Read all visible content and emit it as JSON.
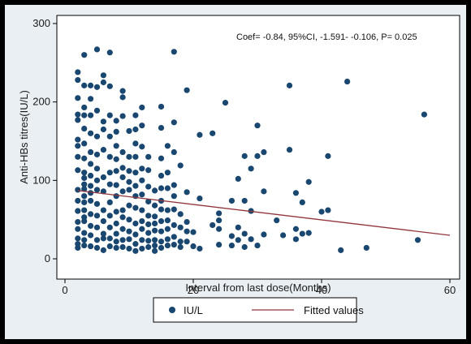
{
  "chart_data": {
    "type": "scatter",
    "xlabel": "Interval from last dose(Months)",
    "ylabel": "Anti-HBs titres(IU/L)",
    "annotation": "Coef= -0.84, 95%CI, -1.591- -0.106, P= 0.025",
    "xlim": [
      0,
      60
    ],
    "ylim": [
      0,
      300
    ],
    "xticks": [
      0,
      20,
      40,
      60
    ],
    "yticks": [
      0,
      100,
      200,
      300
    ],
    "legend_position": "bottom",
    "grid": false,
    "colors": {
      "points": "#1a476f",
      "fitted": "#90353b",
      "plot_bg": "#ffffff",
      "frame_bg": "#e9eff3"
    },
    "series": [
      {
        "name": "IU/L",
        "kind": "scatter",
        "points": [
          [
            2,
            238
          ],
          [
            2,
            228
          ],
          [
            2,
            205
          ],
          [
            2,
            184
          ],
          [
            2,
            177
          ],
          [
            2,
            152
          ],
          [
            2,
            144
          ],
          [
            2,
            130
          ],
          [
            2,
            113
          ],
          [
            2,
            88
          ],
          [
            2,
            74
          ],
          [
            2,
            61
          ],
          [
            2,
            47
          ],
          [
            2,
            38
          ],
          [
            2,
            26
          ],
          [
            2,
            19
          ],
          [
            2,
            14
          ],
          [
            3,
            260
          ],
          [
            3,
            221
          ],
          [
            3,
            193
          ],
          [
            3,
            183
          ],
          [
            3,
            166
          ],
          [
            3,
            147
          ],
          [
            3,
            128
          ],
          [
            3,
            110
          ],
          [
            3,
            103
          ],
          [
            3,
            95
          ],
          [
            3,
            89
          ],
          [
            3,
            80
          ],
          [
            3,
            72
          ],
          [
            3,
            62
          ],
          [
            3,
            53
          ],
          [
            3,
            48
          ],
          [
            3,
            33
          ],
          [
            3,
            24
          ],
          [
            3,
            17
          ],
          [
            4,
            221
          ],
          [
            4,
            204
          ],
          [
            4,
            183
          ],
          [
            4,
            160
          ],
          [
            4,
            136
          ],
          [
            4,
            121
          ],
          [
            4,
            106
          ],
          [
            4,
            93
          ],
          [
            4,
            84
          ],
          [
            4,
            74
          ],
          [
            4,
            57
          ],
          [
            4,
            42
          ],
          [
            4,
            30
          ],
          [
            4,
            16
          ],
          [
            5,
            267
          ],
          [
            5,
            219
          ],
          [
            5,
            189
          ],
          [
            5,
            156
          ],
          [
            5,
            133
          ],
          [
            5,
            115
          ],
          [
            5,
            100
          ],
          [
            5,
            88
          ],
          [
            5,
            70
          ],
          [
            5,
            55
          ],
          [
            5,
            40
          ],
          [
            5,
            24
          ],
          [
            5,
            14
          ],
          [
            6,
            234
          ],
          [
            6,
            225
          ],
          [
            6,
            175
          ],
          [
            6,
            165
          ],
          [
            6,
            139
          ],
          [
            6,
            104
          ],
          [
            6,
            86
          ],
          [
            6,
            62
          ],
          [
            6,
            48
          ],
          [
            6,
            32
          ],
          [
            6,
            26
          ],
          [
            6,
            11
          ],
          [
            7,
            263
          ],
          [
            7,
            220
          ],
          [
            7,
            183
          ],
          [
            7,
            156
          ],
          [
            7,
            130
          ],
          [
            7,
            110
          ],
          [
            7,
            95
          ],
          [
            7,
            72
          ],
          [
            7,
            55
          ],
          [
            7,
            40
          ],
          [
            7,
            26
          ],
          [
            7,
            16
          ],
          [
            8,
            176
          ],
          [
            8,
            162
          ],
          [
            8,
            144
          ],
          [
            8,
            127
          ],
          [
            8,
            112
          ],
          [
            8,
            94
          ],
          [
            8,
            80
          ],
          [
            8,
            60
          ],
          [
            8,
            45
          ],
          [
            8,
            32
          ],
          [
            8,
            22
          ],
          [
            8,
            14
          ],
          [
            9,
            214
          ],
          [
            9,
            206
          ],
          [
            9,
            182
          ],
          [
            9,
            136
          ],
          [
            9,
            116
          ],
          [
            9,
            104
          ],
          [
            9,
            86
          ],
          [
            9,
            62
          ],
          [
            9,
            53
          ],
          [
            9,
            38
          ],
          [
            9,
            24
          ],
          [
            9,
            15
          ],
          [
            10,
            163
          ],
          [
            10,
            130
          ],
          [
            10,
            112
          ],
          [
            10,
            98
          ],
          [
            10,
            88
          ],
          [
            10,
            68
          ],
          [
            10,
            50
          ],
          [
            10,
            35
          ],
          [
            10,
            25
          ],
          [
            10,
            13
          ],
          [
            11,
            183
          ],
          [
            11,
            165
          ],
          [
            11,
            147
          ],
          [
            11,
            130
          ],
          [
            11,
            110
          ],
          [
            11,
            93
          ],
          [
            11,
            80
          ],
          [
            11,
            65
          ],
          [
            11,
            45
          ],
          [
            11,
            31
          ],
          [
            11,
            19
          ],
          [
            11,
            10
          ],
          [
            12,
            193
          ],
          [
            12,
            170
          ],
          [
            12,
            143
          ],
          [
            12,
            115
          ],
          [
            12,
            100
          ],
          [
            12,
            82
          ],
          [
            12,
            62
          ],
          [
            12,
            48
          ],
          [
            12,
            38
          ],
          [
            12,
            24
          ],
          [
            12,
            13
          ],
          [
            13,
            130
          ],
          [
            13,
            113
          ],
          [
            13,
            92
          ],
          [
            13,
            73
          ],
          [
            13,
            55
          ],
          [
            13,
            44
          ],
          [
            13,
            33
          ],
          [
            13,
            23
          ],
          [
            13,
            15
          ],
          [
            14,
            87
          ],
          [
            14,
            68
          ],
          [
            14,
            54
          ],
          [
            14,
            45
          ],
          [
            14,
            36
          ],
          [
            14,
            24
          ],
          [
            14,
            17
          ],
          [
            14,
            10
          ],
          [
            15,
            194
          ],
          [
            15,
            167
          ],
          [
            15,
            128
          ],
          [
            15,
            106
          ],
          [
            15,
            90
          ],
          [
            15,
            74
          ],
          [
            15,
            63
          ],
          [
            15,
            48
          ],
          [
            15,
            35
          ],
          [
            15,
            22
          ],
          [
            15,
            14
          ],
          [
            16,
            144
          ],
          [
            16,
            110
          ],
          [
            16,
            90
          ],
          [
            16,
            62
          ],
          [
            16,
            49
          ],
          [
            16,
            38
          ],
          [
            16,
            25
          ],
          [
            16,
            17
          ],
          [
            17,
            264
          ],
          [
            17,
            174
          ],
          [
            17,
            136
          ],
          [
            17,
            94
          ],
          [
            17,
            80
          ],
          [
            17,
            63
          ],
          [
            17,
            43
          ],
          [
            17,
            28
          ],
          [
            17,
            18
          ],
          [
            18,
            119
          ],
          [
            18,
            57
          ],
          [
            18,
            40
          ],
          [
            18,
            22
          ],
          [
            18,
            15
          ],
          [
            19,
            215
          ],
          [
            19,
            85
          ],
          [
            19,
            47
          ],
          [
            19,
            35
          ],
          [
            19,
            22
          ],
          [
            20,
            16
          ],
          [
            20,
            34
          ],
          [
            21,
            158
          ],
          [
            21,
            77
          ],
          [
            21,
            13
          ],
          [
            23,
            160
          ],
          [
            23,
            43
          ],
          [
            24,
            58
          ],
          [
            24,
            49
          ],
          [
            24,
            38
          ],
          [
            24,
            18
          ],
          [
            25,
            199
          ],
          [
            26,
            74
          ],
          [
            26,
            29
          ],
          [
            26,
            17
          ],
          [
            27,
            102
          ],
          [
            27,
            40
          ],
          [
            27,
            24
          ],
          [
            28,
            131
          ],
          [
            28,
            74
          ],
          [
            28,
            32
          ],
          [
            28,
            15
          ],
          [
            29,
            115
          ],
          [
            29,
            61
          ],
          [
            29,
            25
          ],
          [
            30,
            170
          ],
          [
            30,
            131
          ],
          [
            30,
            17
          ],
          [
            31,
            136
          ],
          [
            31,
            86
          ],
          [
            31,
            31
          ],
          [
            33,
            49
          ],
          [
            34,
            30
          ],
          [
            35,
            221
          ],
          [
            35,
            139
          ],
          [
            36,
            84
          ],
          [
            36,
            38
          ],
          [
            36,
            25
          ],
          [
            37,
            72
          ],
          [
            37,
            32
          ],
          [
            38,
            98
          ],
          [
            38,
            33
          ],
          [
            40,
            60
          ],
          [
            41,
            131
          ],
          [
            41,
            62
          ],
          [
            44,
            226
          ],
          [
            43,
            11
          ],
          [
            47,
            14
          ],
          [
            55,
            24
          ],
          [
            56,
            184
          ]
        ]
      },
      {
        "name": "Fitted values",
        "kind": "line",
        "points": [
          [
            2,
            87
          ],
          [
            60,
            30
          ]
        ]
      }
    ]
  }
}
